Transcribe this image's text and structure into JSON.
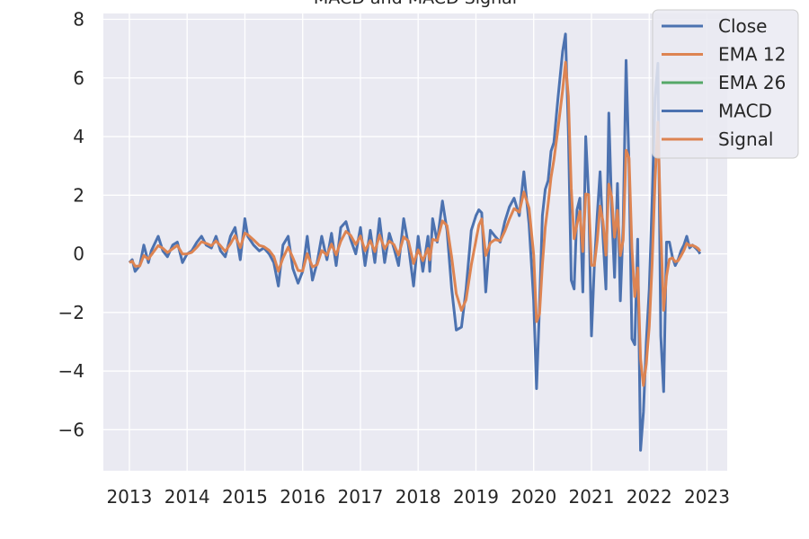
{
  "chart_data": {
    "type": "line",
    "title": "MACD and MACD Signal",
    "xlabel": "",
    "ylabel": "",
    "xlim": [
      2012.55,
      2023.35
    ],
    "ylim": [
      -7.4,
      8.2
    ],
    "x_ticks": [
      "2013",
      "2014",
      "2015",
      "2016",
      "2017",
      "2018",
      "2019",
      "2020",
      "2021",
      "2022",
      "2023"
    ],
    "y_ticks": [
      "8",
      "6",
      "4",
      "2",
      "0",
      "−2",
      "−4",
      "−6"
    ],
    "y_tick_values": [
      8,
      6,
      4,
      2,
      0,
      -2,
      -4,
      -6
    ],
    "grid": true,
    "legend_position": "top-right",
    "series": [
      {
        "name": "Close",
        "color": "#4c72b0",
        "x": [],
        "y": []
      },
      {
        "name": "EMA 12",
        "color": "#dd8452",
        "x": [],
        "y": []
      },
      {
        "name": "EMA 26",
        "color": "#55a868",
        "x": [],
        "y": []
      },
      {
        "name": "MACD",
        "color": "#4c72b0",
        "x": [
          2013.0,
          2013.05,
          2013.1,
          2013.18,
          2013.25,
          2013.33,
          2013.38,
          2013.5,
          2013.58,
          2013.66,
          2013.75,
          2013.83,
          2013.92,
          2014.0,
          2014.08,
          2014.17,
          2014.25,
          2014.33,
          2014.42,
          2014.5,
          2014.58,
          2014.66,
          2014.75,
          2014.83,
          2014.92,
          2015.0,
          2015.05,
          2015.15,
          2015.25,
          2015.33,
          2015.42,
          2015.5,
          2015.58,
          2015.66,
          2015.75,
          2015.83,
          2015.92,
          2016.0,
          2016.08,
          2016.17,
          2016.25,
          2016.33,
          2016.42,
          2016.5,
          2016.58,
          2016.66,
          2016.75,
          2016.83,
          2016.92,
          2017.0,
          2017.08,
          2017.17,
          2017.25,
          2017.33,
          2017.42,
          2017.5,
          2017.58,
          2017.66,
          2017.75,
          2017.83,
          2017.92,
          2018.0,
          2018.08,
          2018.17,
          2018.2,
          2018.25,
          2018.33,
          2018.42,
          2018.5,
          2018.58,
          2018.66,
          2018.75,
          2018.83,
          2018.92,
          2019.0,
          2019.05,
          2019.1,
          2019.17,
          2019.25,
          2019.33,
          2019.42,
          2019.5,
          2019.58,
          2019.66,
          2019.75,
          2019.83,
          2019.92,
          2020.0,
          2020.05,
          2020.1,
          2020.15,
          2020.2,
          2020.25,
          2020.3,
          2020.35,
          2020.42,
          2020.5,
          2020.55,
          2020.6,
          2020.65,
          2020.7,
          2020.75,
          2020.8,
          2020.85,
          2020.9,
          2020.95,
          2021.0,
          2021.05,
          2021.1,
          2021.15,
          2021.2,
          2021.25,
          2021.3,
          2021.35,
          2021.4,
          2021.45,
          2021.5,
          2021.55,
          2021.6,
          2021.65,
          2021.7,
          2021.75,
          2021.8,
          2021.85,
          2021.9,
          2021.95,
          2022.0,
          2022.05,
          2022.1,
          2022.15,
          2022.2,
          2022.25,
          2022.3,
          2022.35,
          2022.4,
          2022.45,
          2022.5,
          2022.55,
          2022.6,
          2022.65,
          2022.7,
          2022.75,
          2022.8,
          2022.85,
          2022.88
        ],
        "y": [
          -0.3,
          -0.2,
          -0.6,
          -0.4,
          0.3,
          -0.3,
          0.1,
          0.6,
          0.1,
          -0.1,
          0.3,
          0.4,
          -0.3,
          0.0,
          0.1,
          0.4,
          0.6,
          0.3,
          0.2,
          0.6,
          0.1,
          -0.1,
          0.6,
          0.9,
          -0.2,
          1.2,
          0.6,
          0.3,
          0.1,
          0.2,
          0.0,
          -0.3,
          -1.1,
          0.3,
          0.6,
          -0.5,
          -1.0,
          -0.6,
          0.6,
          -0.9,
          -0.3,
          0.6,
          -0.2,
          0.7,
          -0.4,
          0.9,
          1.1,
          0.5,
          0.0,
          0.9,
          -0.4,
          0.8,
          -0.3,
          1.2,
          -0.3,
          0.7,
          0.2,
          -0.4,
          1.2,
          0.3,
          -1.1,
          0.6,
          -0.6,
          0.6,
          -0.6,
          1.2,
          0.4,
          1.8,
          0.8,
          -1.2,
          -2.6,
          -2.5,
          -1.2,
          0.8,
          1.3,
          1.5,
          1.4,
          -1.3,
          0.8,
          0.6,
          0.4,
          1.1,
          1.6,
          1.9,
          1.3,
          2.8,
          1.0,
          -1.6,
          -4.6,
          -1.8,
          1.3,
          2.2,
          2.5,
          3.5,
          3.8,
          5.3,
          6.9,
          7.5,
          4.2,
          -0.9,
          -1.2,
          1.5,
          1.9,
          -1.3,
          4.0,
          2.0,
          -2.8,
          -0.4,
          1.3,
          2.8,
          0.6,
          -1.2,
          4.8,
          1.5,
          -0.8,
          2.4,
          -1.6,
          1.0,
          6.6,
          3.0,
          -2.9,
          -3.1,
          0.5,
          -6.7,
          -5.4,
          -3.0,
          -1.2,
          1.8,
          5.3,
          6.5,
          -2.8,
          -4.7,
          0.4,
          0.4,
          -0.1,
          -0.4,
          -0.2,
          0.1,
          0.3,
          0.6,
          0.2,
          0.3,
          0.2,
          0.1,
          0.0
        ],
        "_note": ""
      },
      {
        "name": "Signal",
        "color": "#dd8452",
        "x": [],
        "y": []
      }
    ]
  },
  "colors": {
    "plot_bg": "#eaeaf2",
    "grid": "#ffffff",
    "text": "#262626",
    "blue": "#4c72b0",
    "orange": "#dd8452",
    "green": "#55a868"
  }
}
